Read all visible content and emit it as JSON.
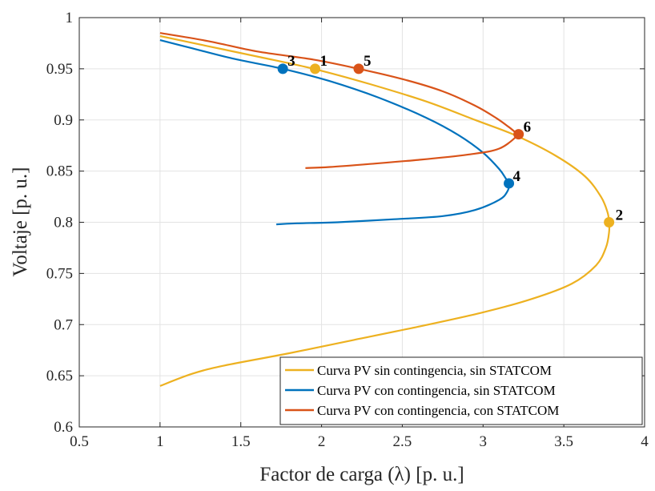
{
  "chart_data": {
    "type": "line",
    "xlabel": "Factor de  carga (λ) [p. u.]",
    "ylabel": "Voltaje [p. u.]",
    "xlim": [
      0.5,
      4
    ],
    "ylim": [
      0.6,
      1
    ],
    "xticks": [
      0.5,
      1,
      1.5,
      2,
      2.5,
      3,
      3.5,
      4
    ],
    "xtick_labels": [
      "0.5",
      "1",
      "1.5",
      "2",
      "2.5",
      "3",
      "3.5",
      "4"
    ],
    "yticks": [
      0.6,
      0.65,
      0.7,
      0.75,
      0.8,
      0.85,
      0.9,
      0.95,
      1
    ],
    "ytick_labels": [
      "0.6",
      "0.65",
      "0.7",
      "0.75",
      "0.8",
      "0.85",
      "0.9",
      "0.95",
      "1"
    ],
    "grid": true,
    "legend_position": "bottom-right",
    "series": [
      {
        "name": "Curva PV sin contingencia, sin STATCOM",
        "color": "#EDB120",
        "x": [
          1.0,
          1.3,
          1.6,
          1.95,
          2.3,
          2.65,
          2.95,
          3.2,
          3.45,
          3.63,
          3.73,
          3.77,
          3.78,
          3.78,
          3.76,
          3.7,
          3.55,
          3.3,
          3.0,
          2.6,
          2.2,
          1.8,
          1.4,
          1.2,
          1.0
        ],
        "y": [
          0.982,
          0.972,
          0.962,
          0.95,
          0.935,
          0.918,
          0.9,
          0.885,
          0.865,
          0.845,
          0.825,
          0.81,
          0.8,
          0.79,
          0.775,
          0.758,
          0.74,
          0.725,
          0.712,
          0.698,
          0.685,
          0.672,
          0.66,
          0.652,
          0.64
        ]
      },
      {
        "name": "Curva PV con contingencia, sin STATCOM",
        "color": "#0072BD",
        "x": [
          1.0,
          1.2,
          1.45,
          1.76,
          2.05,
          2.35,
          2.65,
          2.85,
          3.0,
          3.1,
          3.14,
          3.16,
          3.15,
          3.1,
          2.95,
          2.75,
          2.45,
          2.1,
          1.85,
          1.72
        ],
        "y": [
          0.978,
          0.97,
          0.96,
          0.95,
          0.938,
          0.922,
          0.902,
          0.885,
          0.868,
          0.852,
          0.843,
          0.838,
          0.83,
          0.822,
          0.812,
          0.806,
          0.803,
          0.8,
          0.799,
          0.798
        ]
      },
      {
        "name": "Curva PV con contingencia, con STATCOM",
        "color": "#D95319",
        "x": [
          1.0,
          1.3,
          1.6,
          1.95,
          2.23,
          2.5,
          2.75,
          2.95,
          3.08,
          3.16,
          3.2,
          3.22,
          3.1,
          2.9,
          2.6,
          2.3,
          2.05,
          1.9
        ],
        "y": [
          0.985,
          0.977,
          0.967,
          0.959,
          0.95,
          0.94,
          0.928,
          0.914,
          0.902,
          0.893,
          0.888,
          0.886,
          0.872,
          0.866,
          0.861,
          0.857,
          0.854,
          0.853
        ]
      }
    ],
    "points": [
      {
        "label": "1",
        "x": 1.96,
        "y": 0.95,
        "color": "#EDB120",
        "label_dx": 6,
        "label_dy": -4
      },
      {
        "label": "2",
        "x": 3.78,
        "y": 0.8,
        "color": "#EDB120",
        "label_dx": 8,
        "label_dy": -3
      },
      {
        "label": "3",
        "x": 1.76,
        "y": 0.95,
        "color": "#0072BD",
        "label_dx": 6,
        "label_dy": -4
      },
      {
        "label": "4",
        "x": 3.16,
        "y": 0.838,
        "color": "#0072BD",
        "label_dx": 5,
        "label_dy": -3
      },
      {
        "label": "5",
        "x": 2.23,
        "y": 0.95,
        "color": "#D95319",
        "label_dx": 6,
        "label_dy": -4
      },
      {
        "label": "6",
        "x": 3.22,
        "y": 0.886,
        "color": "#D95319",
        "label_dx": 6,
        "label_dy": -3
      }
    ]
  }
}
